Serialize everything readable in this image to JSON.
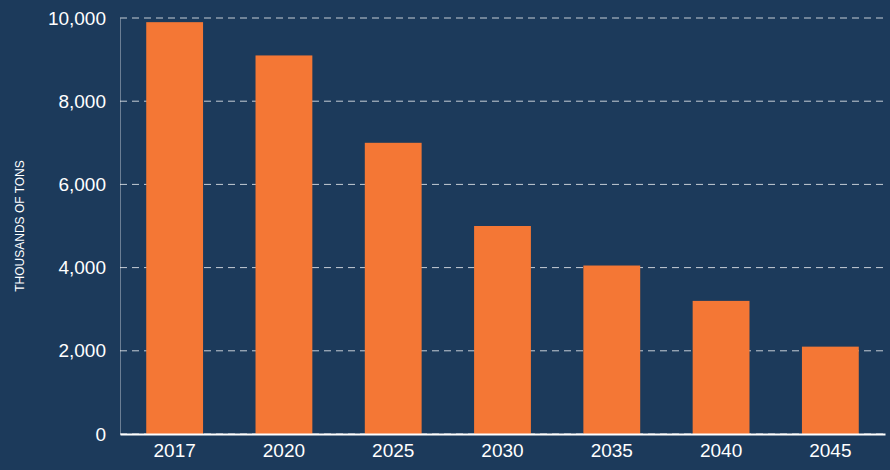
{
  "chart_data": {
    "type": "bar",
    "y_label": "THOUSANDS OF TONS",
    "categories": [
      "2017",
      "2020",
      "2025",
      "2030",
      "2035",
      "2040",
      "2045"
    ],
    "values": [
      9900,
      9100,
      7000,
      5000,
      4050,
      3200,
      2100
    ],
    "color": "#f47735",
    "ylim": [
      0,
      10000
    ],
    "yticks": [
      0,
      {
        "value": 2000,
        "label": "2,000"
      },
      {
        "value": 4000,
        "label": "4,000"
      },
      {
        "value": 6000,
        "label": "6,000"
      },
      {
        "value": 8000,
        "label": "8,000"
      },
      {
        "value": 10000,
        "label": "10,000"
      }
    ],
    "grid": true
  }
}
